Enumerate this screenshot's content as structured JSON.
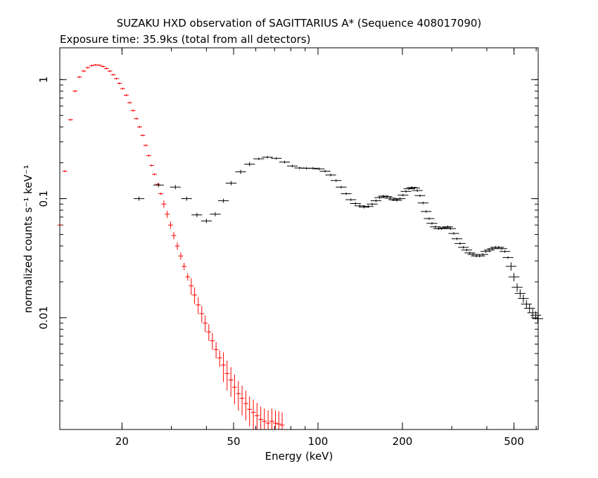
{
  "chart_data": {
    "type": "scatter",
    "title": "SUZAKU HXD observation of SAGITTARIUS A* (Sequence 408017090)",
    "subtitle": "Exposure time: 35.9ks (total from all detectors)",
    "xlabel": "Energy (keV)",
    "ylabel": "normalized counts s⁻¹ keV⁻¹",
    "x_scale": "log",
    "y_scale": "log",
    "xlim": [
      12,
      610
    ],
    "ylim": [
      0.00115,
      1.85
    ],
    "x_ticks": [
      {
        "value": 20,
        "label": "20"
      },
      {
        "value": 50,
        "label": "50"
      },
      {
        "value": 100,
        "label": "100"
      },
      {
        "value": 200,
        "label": "200"
      },
      {
        "value": 500,
        "label": "500"
      }
    ],
    "y_ticks": [
      {
        "value": 1,
        "label": "1"
      },
      {
        "value": 0.1,
        "label": "0.1"
      },
      {
        "value": 0.01,
        "label": "0.01"
      }
    ],
    "grid": false,
    "colors": {
      "pin": "#ff0000",
      "gso": "#000000",
      "axes": "#000000"
    },
    "series": [
      {
        "color": "#ff0000",
        "points": [
          [
            12.0,
            0.06
          ],
          [
            12.5,
            0.17
          ],
          [
            13.1,
            0.46
          ],
          [
            13.6,
            0.8
          ],
          [
            14.1,
            1.05
          ],
          [
            14.6,
            1.18
          ],
          [
            15.1,
            1.26
          ],
          [
            15.6,
            1.31
          ],
          [
            16.1,
            1.33
          ],
          [
            16.6,
            1.32
          ],
          [
            17.1,
            1.29
          ],
          [
            17.6,
            1.24
          ],
          [
            18.1,
            1.18
          ],
          [
            18.6,
            1.1
          ],
          [
            19.1,
            1.02
          ],
          [
            19.6,
            0.93
          ],
          [
            20.1,
            0.84
          ],
          [
            20.7,
            0.74
          ],
          [
            21.3,
            0.64
          ],
          [
            21.9,
            0.55
          ],
          [
            22.5,
            0.47
          ],
          [
            23.1,
            0.4
          ],
          [
            23.7,
            0.34
          ],
          [
            24.3,
            0.28
          ],
          [
            24.9,
            0.23
          ],
          [
            25.5,
            0.19
          ],
          [
            26.1,
            0.16
          ],
          [
            26.8,
            0.132
          ],
          [
            27.5,
            0.11
          ],
          [
            28.2,
            0.09
          ],
          [
            29.0,
            0.074
          ],
          [
            29.8,
            0.06
          ],
          [
            30.6,
            0.049
          ],
          [
            31.5,
            0.04
          ],
          [
            32.4,
            0.033
          ],
          [
            33.3,
            0.027
          ],
          [
            34.3,
            0.022
          ],
          [
            35.3,
            0.0185
          ],
          [
            36.3,
            0.0155
          ],
          [
            37.4,
            0.0128
          ],
          [
            38.5,
            0.0108
          ],
          [
            39.6,
            0.009
          ],
          [
            40.8,
            0.0076
          ],
          [
            42.0,
            0.0064
          ],
          [
            43.3,
            0.0054
          ],
          [
            44.6,
            0.0046
          ],
          [
            46.0,
            0.004
          ],
          [
            47.4,
            0.0034
          ],
          [
            48.9,
            0.003
          ],
          [
            50.4,
            0.0026
          ],
          [
            52.0,
            0.0023
          ],
          [
            53.6,
            0.0021
          ],
          [
            55.3,
            0.0019
          ],
          [
            57.0,
            0.0017
          ],
          [
            58.8,
            0.0016
          ],
          [
            60.6,
            0.0015
          ],
          [
            62.5,
            0.0014
          ],
          [
            64.4,
            0.00135
          ],
          [
            66.4,
            0.0013
          ],
          [
            68.5,
            0.00135
          ],
          [
            70.5,
            0.0013
          ],
          [
            72.5,
            0.00128
          ],
          [
            74.5,
            0.00125
          ]
        ]
      },
      {
        "color": "#000000",
        "points": [
          [
            23.0,
            0.1
          ],
          [
            27.0,
            0.13
          ],
          [
            31.0,
            0.125
          ],
          [
            34.0,
            0.1
          ],
          [
            37.0,
            0.073
          ],
          [
            40.0,
            0.065
          ],
          [
            43.0,
            0.074
          ],
          [
            46.0,
            0.096
          ],
          [
            49.0,
            0.135
          ],
          [
            53.0,
            0.168
          ],
          [
            57.0,
            0.195
          ],
          [
            61.5,
            0.216
          ],
          [
            66.0,
            0.223
          ],
          [
            71.0,
            0.218
          ],
          [
            76.0,
            0.203
          ],
          [
            81.0,
            0.188
          ],
          [
            86.0,
            0.181
          ],
          [
            91.0,
            0.18
          ],
          [
            96.0,
            0.18
          ],
          [
            101.0,
            0.178
          ],
          [
            106.0,
            0.17
          ],
          [
            111.0,
            0.158
          ],
          [
            116.0,
            0.142
          ],
          [
            121.0,
            0.125
          ],
          [
            126.0,
            0.11
          ],
          [
            131.0,
            0.098
          ],
          [
            136.0,
            0.091
          ],
          [
            141.0,
            0.087
          ],
          [
            146.0,
            0.085
          ],
          [
            151.0,
            0.086
          ],
          [
            156.0,
            0.09
          ],
          [
            161.0,
            0.096
          ],
          [
            166.0,
            0.102
          ],
          [
            171.0,
            0.105
          ],
          [
            176.0,
            0.104
          ],
          [
            181.0,
            0.101
          ],
          [
            186.0,
            0.098
          ],
          [
            191.0,
            0.097
          ],
          [
            196.0,
            0.1
          ],
          [
            201.0,
            0.107
          ],
          [
            206.0,
            0.115
          ],
          [
            211.0,
            0.121
          ],
          [
            216.0,
            0.124
          ],
          [
            221.0,
            0.123
          ],
          [
            226.0,
            0.117
          ],
          [
            231.0,
            0.106
          ],
          [
            237.0,
            0.092
          ],
          [
            243.0,
            0.078
          ],
          [
            249.0,
            0.068
          ],
          [
            255.0,
            0.062
          ],
          [
            262.0,
            0.058
          ],
          [
            269.0,
            0.056
          ],
          [
            276.0,
            0.056
          ],
          [
            283.0,
            0.057
          ],
          [
            290.0,
            0.058
          ],
          [
            297.0,
            0.056
          ],
          [
            305.0,
            0.051
          ],
          [
            313.0,
            0.046
          ],
          [
            321.0,
            0.042
          ],
          [
            330.0,
            0.039
          ],
          [
            339.0,
            0.037
          ],
          [
            348.0,
            0.035
          ],
          [
            357.0,
            0.034
          ],
          [
            367.0,
            0.033
          ],
          [
            377.0,
            0.033
          ],
          [
            387.0,
            0.034
          ],
          [
            397.0,
            0.036
          ],
          [
            408.0,
            0.037
          ],
          [
            419.0,
            0.038
          ],
          [
            430.0,
            0.039
          ],
          [
            441.0,
            0.039
          ],
          [
            452.0,
            0.038
          ],
          [
            464.0,
            0.036
          ],
          [
            476.0,
            0.032
          ],
          [
            488.0,
            0.027
          ],
          [
            500.0,
            0.022
          ],
          [
            513.0,
            0.018
          ],
          [
            526.0,
            0.016
          ],
          [
            540.0,
            0.0145
          ],
          [
            554.0,
            0.013
          ],
          [
            568.0,
            0.012
          ],
          [
            583.0,
            0.011
          ],
          [
            598.0,
            0.0105
          ],
          [
            608.0,
            0.0098
          ]
        ]
      }
    ]
  }
}
